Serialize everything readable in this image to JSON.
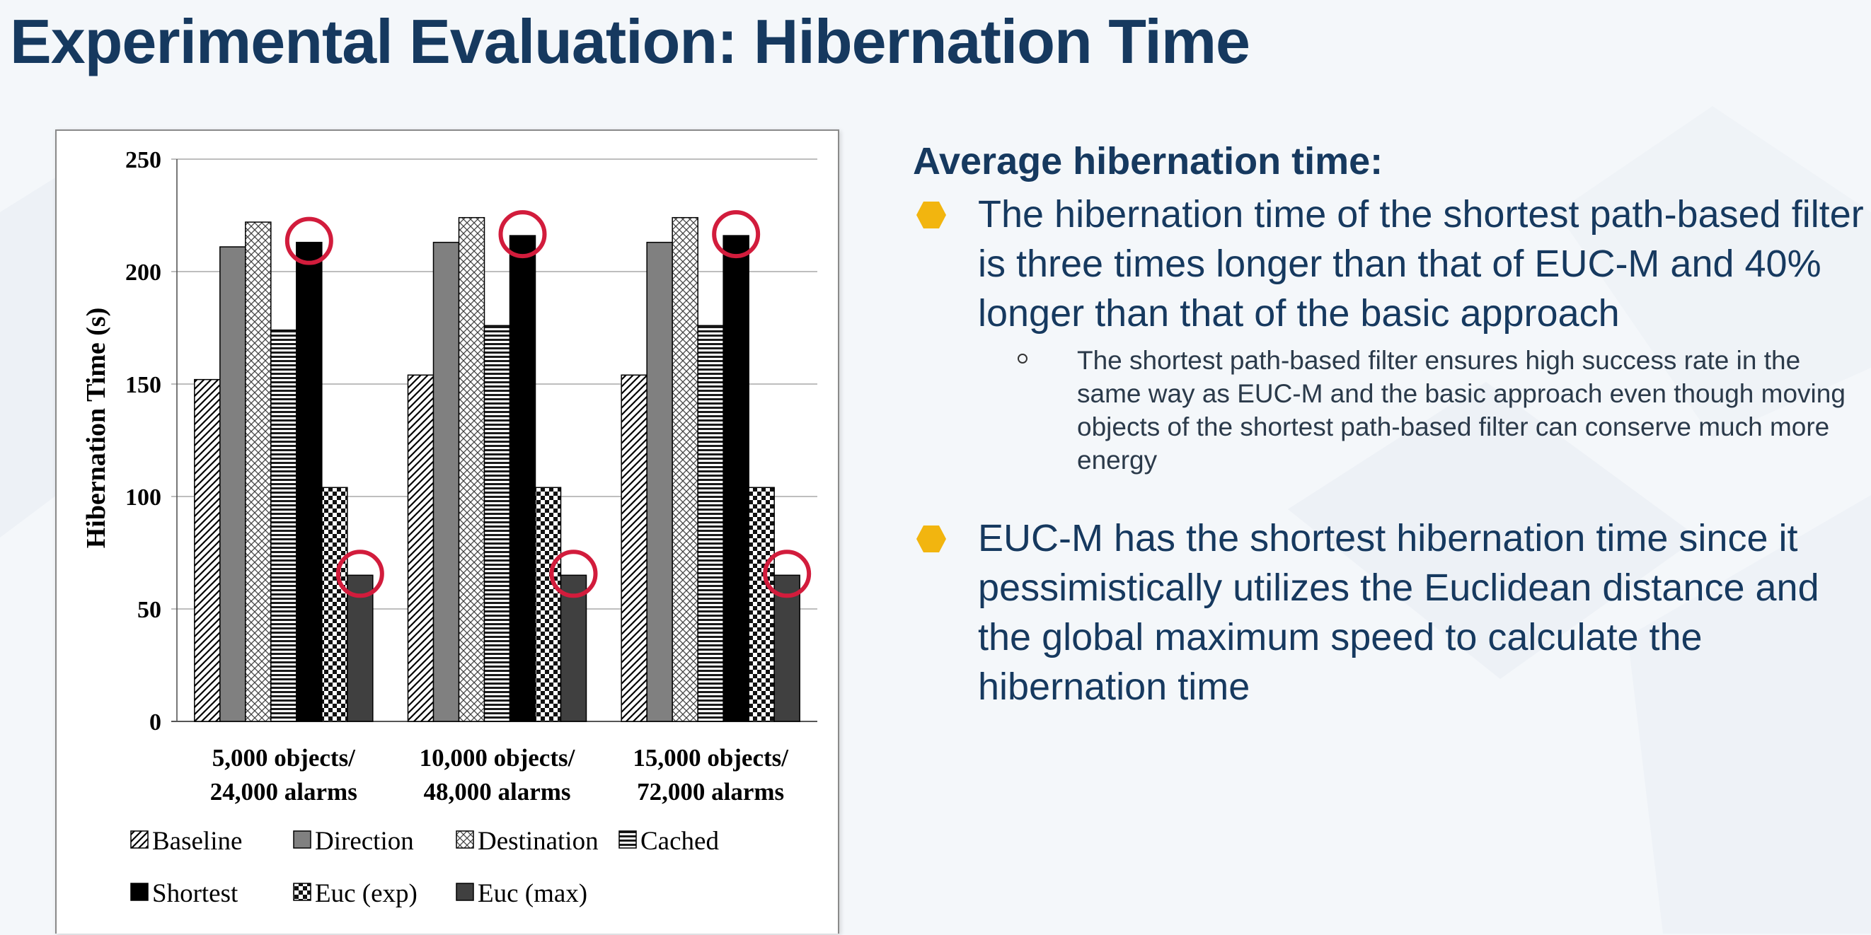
{
  "slide": {
    "title": "Experimental Evaluation: Hibernation Time",
    "colors": {
      "title": "#16395f",
      "bullet": "#f2b50f",
      "highlight_circle": "#d21c3c"
    }
  },
  "text": {
    "heading": "Average hibernation time:",
    "bullets": [
      {
        "icon": "hexagon-bullet-icon",
        "text": "The hibernation time of the shortest path-based filter is three times longer than that of EUC-M and 40% longer than that of the basic approach",
        "sub": [
          "The shortest path-based filter ensures high success rate in the same way as EUC-M and the basic approach even though moving objects of the shortest path-based filter can conserve much more energy"
        ]
      },
      {
        "icon": "hexagon-bullet-icon",
        "text": "EUC-M has the shortest hibernation time since it pessimistically utilizes the Euclidean distance and the global maximum speed to calculate the hibernation time",
        "sub": []
      }
    ]
  },
  "chart_data": {
    "type": "bar",
    "title": "",
    "xlabel": "",
    "ylabel": "Hibernation Time (s)",
    "ylim": [
      0,
      250
    ],
    "yticks": [
      0,
      50,
      100,
      150,
      200,
      250
    ],
    "grid": true,
    "legend_position": "bottom",
    "categories": [
      [
        "5,000 objects/",
        "24,000 alarms"
      ],
      [
        "10,000 objects/",
        "48,000 alarms"
      ],
      [
        "15,000 objects/",
        "72,000 alarms"
      ]
    ],
    "series": [
      {
        "name": "Baseline",
        "values": [
          152,
          154,
          154
        ],
        "pattern": "diagonal-hatch"
      },
      {
        "name": "Direction",
        "values": [
          211,
          213,
          213
        ],
        "pattern": "solid-gray"
      },
      {
        "name": "Destination",
        "values": [
          222,
          224,
          224
        ],
        "pattern": "crosshatch"
      },
      {
        "name": "Cached",
        "values": [
          174,
          176,
          176
        ],
        "pattern": "horizontal-lines"
      },
      {
        "name": "Shortest",
        "values": [
          213,
          216,
          216
        ],
        "pattern": "solid-black",
        "highlighted": true
      },
      {
        "name": "Euc (exp)",
        "values": [
          104,
          104,
          104
        ],
        "pattern": "checker"
      },
      {
        "name": "Euc (max)",
        "values": [
          65,
          65,
          65
        ],
        "pattern": "solid-dark-gray",
        "highlighted": true
      }
    ]
  }
}
